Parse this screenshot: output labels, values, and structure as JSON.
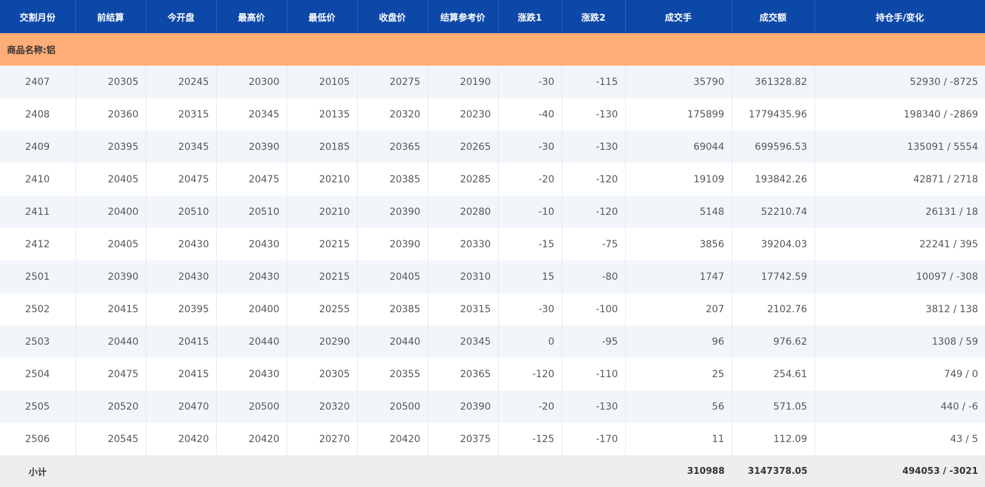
{
  "header": [
    "交割月份",
    "前结算",
    "今开盘",
    "最高价",
    "最低价",
    "收盘价",
    "结算参考价",
    "涨跌1",
    "涨跌2",
    "成交手",
    "成交额",
    "持仓手/变化"
  ],
  "section": "商品名称:铝",
  "rows": [
    [
      "2407",
      "20305",
      "20245",
      "20300",
      "20105",
      "20275",
      "20190",
      "-30",
      "-115",
      "35790",
      "361328.82",
      "52930 / -8725"
    ],
    [
      "2408",
      "20360",
      "20315",
      "20345",
      "20135",
      "20320",
      "20230",
      "-40",
      "-130",
      "175899",
      "1779435.96",
      "198340 / -2869"
    ],
    [
      "2409",
      "20395",
      "20345",
      "20390",
      "20185",
      "20365",
      "20265",
      "-30",
      "-130",
      "69044",
      "699596.53",
      "135091 / 5554"
    ],
    [
      "2410",
      "20405",
      "20475",
      "20475",
      "20210",
      "20385",
      "20285",
      "-20",
      "-120",
      "19109",
      "193842.26",
      "42871 / 2718"
    ],
    [
      "2411",
      "20400",
      "20510",
      "20510",
      "20210",
      "20390",
      "20280",
      "-10",
      "-120",
      "5148",
      "52210.74",
      "26131 / 18"
    ],
    [
      "2412",
      "20405",
      "20430",
      "20430",
      "20215",
      "20390",
      "20330",
      "-15",
      "-75",
      "3856",
      "39204.03",
      "22241 / 395"
    ],
    [
      "2501",
      "20390",
      "20430",
      "20430",
      "20215",
      "20405",
      "20310",
      "15",
      "-80",
      "1747",
      "17742.59",
      "10097 / -308"
    ],
    [
      "2502",
      "20415",
      "20395",
      "20400",
      "20255",
      "20385",
      "20315",
      "-30",
      "-100",
      "207",
      "2102.76",
      "3812 / 138"
    ],
    [
      "2503",
      "20440",
      "20415",
      "20440",
      "20290",
      "20440",
      "20345",
      "0",
      "-95",
      "96",
      "976.62",
      "1308 / 59"
    ],
    [
      "2504",
      "20475",
      "20415",
      "20430",
      "20305",
      "20355",
      "20365",
      "-120",
      "-110",
      "25",
      "254.61",
      "749 / 0"
    ],
    [
      "2505",
      "20520",
      "20470",
      "20500",
      "20320",
      "20500",
      "20390",
      "-20",
      "-130",
      "56",
      "571.05",
      "440 / -6"
    ],
    [
      "2506",
      "20545",
      "20420",
      "20420",
      "20270",
      "20420",
      "20375",
      "-125",
      "-170",
      "11",
      "112.09",
      "43 / 5"
    ]
  ],
  "subtotal": {
    "label": "小计",
    "volume": "310988",
    "turnover": "3147378.05",
    "open_interest": "494053 / -3021"
  }
}
